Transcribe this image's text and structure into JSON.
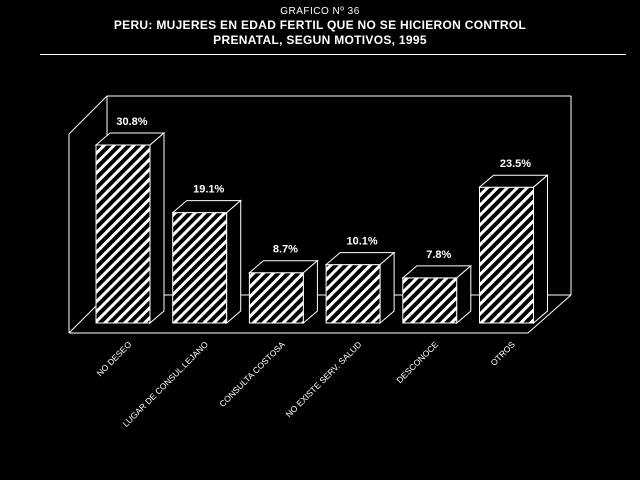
{
  "header": {
    "kicker": "GRAFICO Nº 36",
    "title_line1": "PERU: MUJERES EN EDAD FERTIL QUE NO SE HICIERON CONTROL",
    "title_line2": "PRENATAL, SEGUN MOTIVOS, 1995"
  },
  "chart_data": {
    "type": "bar",
    "style": "3d",
    "title": "PERU: MUJERES EN EDAD FERTIL QUE NO SE HICIERON CONTROL PRENATAL, SEGUN MOTIVOS, 1995",
    "categories": [
      "NO DESEO",
      "LUGAR DE CONSUL.LEJANO",
      "CONSULTA COSTOSA",
      "NO EXISTE SERV. SALUD",
      "DESCONOCE",
      "OTROS"
    ],
    "values": [
      30.8,
      19.1,
      8.7,
      10.1,
      7.8,
      23.5
    ],
    "value_labels": [
      "30.8%",
      "19.1%",
      "8.7%",
      "10.1%",
      "7.8%",
      "23.5%"
    ],
    "xlabel": "",
    "ylabel": "",
    "ylim": [
      0,
      32
    ],
    "grid": false,
    "legend": "none",
    "colors": {
      "background": "#000000",
      "bar_fill": "#000000",
      "bar_hatch": "#ffffff",
      "axis": "#ffffff",
      "text": "#ffffff"
    }
  }
}
